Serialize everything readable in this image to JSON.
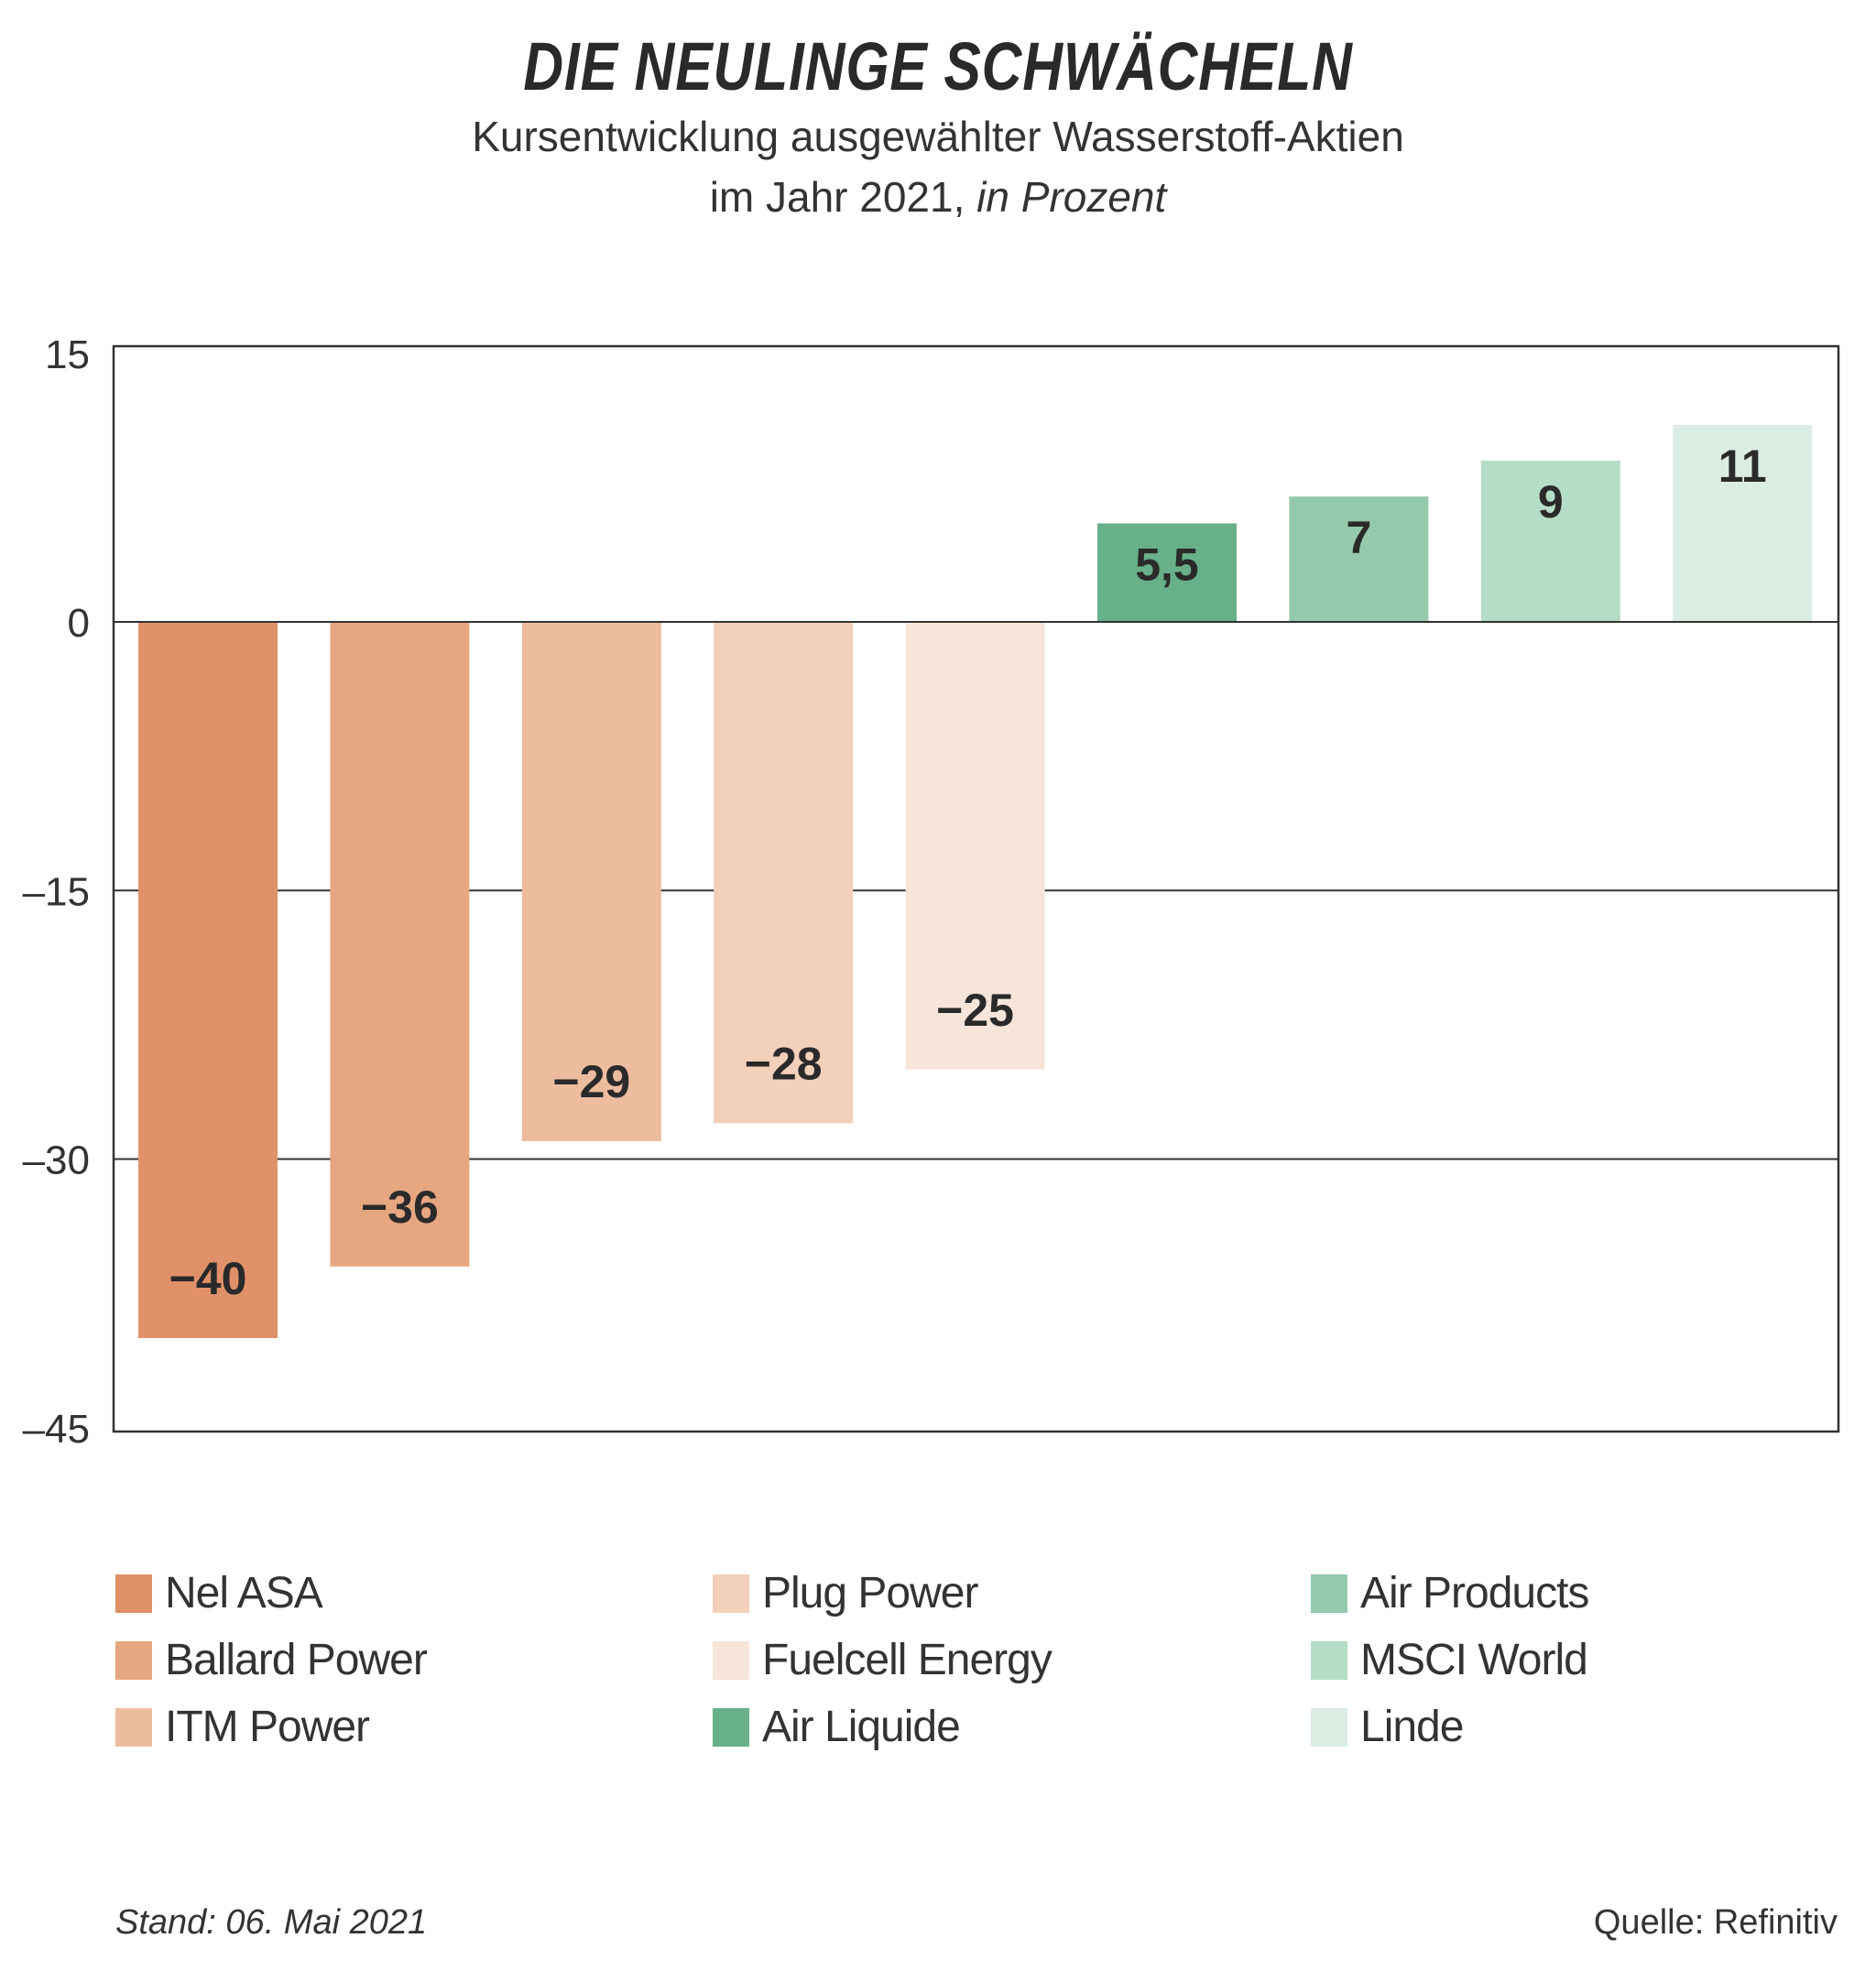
{
  "chart_data": {
    "type": "bar",
    "title": "DIE NEULINGE SCHWÄCHELN",
    "subtitle_line1": "Kursentwicklung ausgewählter Wasserstoff-Aktien",
    "subtitle_line2_plain": "im Jahr 2021, ",
    "subtitle_line2_italic": "in Prozent",
    "categories": [
      "Nel ASA",
      "Ballard Power",
      "ITM Power",
      "Plug Power",
      "Fuelcell Energy",
      "Air Liquide",
      "Air Products",
      "MSCI World",
      "Linde"
    ],
    "values": [
      -40,
      -36,
      -29,
      -28,
      -25,
      5.5,
      7,
      9,
      11
    ],
    "value_labels": [
      "−40",
      "−36",
      "−29",
      "−28",
      "−25",
      "5,5",
      "7",
      "9",
      "11"
    ],
    "colors": [
      "#e0916a",
      "#e6a680",
      "#edbc9e",
      "#f3d0ba",
      "#f7e5da",
      "#68b089",
      "#94caab",
      "#b5dcc6",
      "#dcede3"
    ],
    "yticks": [
      15,
      0,
      -15,
      -30,
      -45
    ],
    "ytick_labels": [
      "15",
      "0",
      "–15",
      "–30",
      "–45"
    ],
    "ylim": [
      -45,
      15
    ],
    "xlabel": "",
    "ylabel": "",
    "grid": true,
    "legend_placement": "bottom"
  },
  "footer": {
    "stand": "Stand: 06. Mai 2021",
    "source": "Quelle: Refinitiv"
  }
}
